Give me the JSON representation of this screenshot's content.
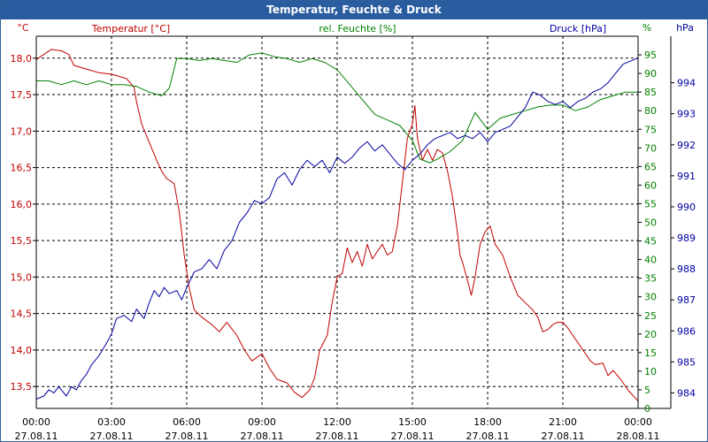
{
  "window": {
    "title": "Temperatur, Feuchte & Druck"
  },
  "chart_data": {
    "type": "line",
    "title": "Temperatur, Feuchte & Druck",
    "grid": true,
    "xlim_hours": [
      0,
      24
    ],
    "x_ticks": [
      {
        "hour": 0,
        "time": "00:00",
        "date": "27.08.11"
      },
      {
        "hour": 3,
        "time": "03:00",
        "date": "27.08.11"
      },
      {
        "hour": 6,
        "time": "06:00",
        "date": "27.08.11"
      },
      {
        "hour": 9,
        "time": "09:00",
        "date": "27.08.11"
      },
      {
        "hour": 12,
        "time": "12:00",
        "date": "27.08.11"
      },
      {
        "hour": 15,
        "time": "15:00",
        "date": "27.08.11"
      },
      {
        "hour": 18,
        "time": "18:00",
        "date": "27.08.11"
      },
      {
        "hour": 21,
        "time": "21:00",
        "date": "27.08.11"
      },
      {
        "hour": 24,
        "time": "00:00",
        "date": "28.08.11"
      }
    ],
    "axes": {
      "temperature": {
        "label": "Temperatur [°C]",
        "unit": "°C",
        "color": "#c00000",
        "ylim": [
          13.2,
          18.3
        ],
        "ticks": [
          "13,5",
          "14,0",
          "14,5",
          "15,0",
          "15,5",
          "16,0",
          "16,5",
          "17,0",
          "17,5",
          "18,0"
        ],
        "tick_values": [
          13.5,
          14.0,
          14.5,
          15.0,
          15.5,
          16.0,
          16.5,
          17.0,
          17.5,
          18.0
        ]
      },
      "humidity": {
        "label": "rel. Feuchte [%]",
        "unit": "%",
        "color": "#008000",
        "ylim": [
          0,
          100
        ],
        "ticks": [
          "0",
          "5",
          "10",
          "15",
          "20",
          "25",
          "30",
          "35",
          "40",
          "45",
          "50",
          "55",
          "60",
          "65",
          "70",
          "75",
          "80",
          "85",
          "90",
          "95"
        ],
        "tick_values": [
          0,
          5,
          10,
          15,
          20,
          25,
          30,
          35,
          40,
          45,
          50,
          55,
          60,
          65,
          70,
          75,
          80,
          85,
          90,
          95
        ]
      },
      "pressure": {
        "label": "Druck [hPa]",
        "unit": "hPa",
        "color": "#0000a0",
        "ylim": [
          983.5,
          995.5
        ],
        "ticks": [
          "984",
          "985",
          "986",
          "987",
          "988",
          "989",
          "990",
          "991",
          "992",
          "993",
          "994"
        ],
        "tick_values": [
          984,
          985,
          986,
          987,
          988,
          989,
          990,
          991,
          992,
          993,
          994
        ]
      }
    },
    "series": [
      {
        "name": "Temperatur [°C]",
        "axis": "temperature",
        "color": "#c00000",
        "points": [
          [
            0,
            17.98
          ],
          [
            0.3,
            18.05
          ],
          [
            0.6,
            18.12
          ],
          [
            1,
            18.1
          ],
          [
            1.3,
            18.05
          ],
          [
            1.5,
            17.9
          ],
          [
            2,
            17.85
          ],
          [
            2.5,
            17.8
          ],
          [
            3,
            17.78
          ],
          [
            3.3,
            17.75
          ],
          [
            3.6,
            17.72
          ],
          [
            3.9,
            17.6
          ],
          [
            4,
            17.4
          ],
          [
            4.2,
            17.1
          ],
          [
            4.5,
            16.85
          ],
          [
            4.8,
            16.6
          ],
          [
            5,
            16.45
          ],
          [
            5.2,
            16.35
          ],
          [
            5.5,
            16.28
          ],
          [
            5.7,
            15.9
          ],
          [
            5.9,
            15.3
          ],
          [
            6.1,
            14.85
          ],
          [
            6.3,
            14.55
          ],
          [
            6.6,
            14.45
          ],
          [
            7,
            14.35
          ],
          [
            7.3,
            14.25
          ],
          [
            7.6,
            14.38
          ],
          [
            8,
            14.2
          ],
          [
            8.3,
            14.0
          ],
          [
            8.6,
            13.85
          ],
          [
            9,
            13.95
          ],
          [
            9.3,
            13.75
          ],
          [
            9.6,
            13.6
          ],
          [
            10,
            13.55
          ],
          [
            10.3,
            13.42
          ],
          [
            10.6,
            13.35
          ],
          [
            10.9,
            13.45
          ],
          [
            11.1,
            13.62
          ],
          [
            11.3,
            14.0
          ],
          [
            11.6,
            14.2
          ],
          [
            11.8,
            14.65
          ],
          [
            12,
            15.0
          ],
          [
            12.2,
            15.05
          ],
          [
            12.4,
            15.4
          ],
          [
            12.6,
            15.2
          ],
          [
            12.8,
            15.35
          ],
          [
            13,
            15.15
          ],
          [
            13.2,
            15.45
          ],
          [
            13.4,
            15.25
          ],
          [
            13.6,
            15.35
          ],
          [
            13.8,
            15.45
          ],
          [
            14,
            15.3
          ],
          [
            14.2,
            15.35
          ],
          [
            14.4,
            15.7
          ],
          [
            14.6,
            16.3
          ],
          [
            14.8,
            16.9
          ],
          [
            15,
            17.1
          ],
          [
            15.1,
            17.35
          ],
          [
            15.2,
            16.9
          ],
          [
            15.4,
            16.6
          ],
          [
            15.6,
            16.75
          ],
          [
            15.8,
            16.6
          ],
          [
            16,
            16.75
          ],
          [
            16.2,
            16.7
          ],
          [
            16.4,
            16.45
          ],
          [
            16.6,
            16.1
          ],
          [
            16.8,
            15.6
          ],
          [
            16.9,
            15.3
          ],
          [
            17,
            15.2
          ],
          [
            17.2,
            14.95
          ],
          [
            17.35,
            14.75
          ],
          [
            17.5,
            15.0
          ],
          [
            17.7,
            15.45
          ],
          [
            17.9,
            15.62
          ],
          [
            18.1,
            15.7
          ],
          [
            18.3,
            15.45
          ],
          [
            18.6,
            15.3
          ],
          [
            18.9,
            15.0
          ],
          [
            19.2,
            14.75
          ],
          [
            19.5,
            14.65
          ],
          [
            19.8,
            14.55
          ],
          [
            20,
            14.45
          ],
          [
            20.2,
            14.25
          ],
          [
            20.4,
            14.28
          ],
          [
            20.6,
            14.35
          ],
          [
            20.8,
            14.38
          ],
          [
            21,
            14.38
          ],
          [
            21.2,
            14.3
          ],
          [
            21.5,
            14.15
          ],
          [
            21.8,
            14.0
          ],
          [
            22.1,
            13.85
          ],
          [
            22.3,
            13.8
          ],
          [
            22.6,
            13.82
          ],
          [
            22.8,
            13.65
          ],
          [
            23,
            13.72
          ],
          [
            23.3,
            13.6
          ],
          [
            23.6,
            13.45
          ],
          [
            24,
            13.3
          ]
        ]
      },
      {
        "name": "rel. Feuchte [%]",
        "axis": "humidity",
        "color": "#008000",
        "points": [
          [
            0,
            88
          ],
          [
            0.5,
            88
          ],
          [
            1,
            87
          ],
          [
            1.5,
            88
          ],
          [
            2,
            87
          ],
          [
            2.5,
            88
          ],
          [
            3,
            87
          ],
          [
            3.5,
            87
          ],
          [
            4,
            86.5
          ],
          [
            4.5,
            85
          ],
          [
            5,
            84
          ],
          [
            5.3,
            86
          ],
          [
            5.6,
            94
          ],
          [
            6,
            94
          ],
          [
            6.5,
            93.5
          ],
          [
            7,
            94
          ],
          [
            7.5,
            93.5
          ],
          [
            8,
            93
          ],
          [
            8.5,
            95
          ],
          [
            9,
            95.5
          ],
          [
            9.5,
            94.5
          ],
          [
            10,
            94
          ],
          [
            10.5,
            93
          ],
          [
            11,
            94
          ],
          [
            11.5,
            93
          ],
          [
            12,
            91
          ],
          [
            12.5,
            87
          ],
          [
            13,
            83
          ],
          [
            13.5,
            79
          ],
          [
            14,
            77.5
          ],
          [
            14.5,
            76
          ],
          [
            15,
            72
          ],
          [
            15.3,
            67
          ],
          [
            15.7,
            66
          ],
          [
            16,
            67
          ],
          [
            16.5,
            69
          ],
          [
            17,
            72
          ],
          [
            17.5,
            79.5
          ],
          [
            18,
            75
          ],
          [
            18.5,
            78
          ],
          [
            19,
            79
          ],
          [
            19.5,
            80
          ],
          [
            20,
            81
          ],
          [
            20.5,
            81.5
          ],
          [
            21,
            81.5
          ],
          [
            21.5,
            80
          ],
          [
            22,
            81
          ],
          [
            22.5,
            83
          ],
          [
            23,
            84
          ],
          [
            23.5,
            85
          ],
          [
            24,
            85
          ]
        ]
      },
      {
        "name": "Druck [hPa]",
        "axis": "pressure",
        "color": "#0000a0",
        "points": [
          [
            0,
            983.8
          ],
          [
            0.3,
            983.9
          ],
          [
            0.5,
            984.1
          ],
          [
            0.7,
            984.0
          ],
          [
            0.9,
            984.2
          ],
          [
            1,
            984.1
          ],
          [
            1.2,
            983.9
          ],
          [
            1.4,
            984.2
          ],
          [
            1.6,
            984.1
          ],
          [
            1.8,
            984.4
          ],
          [
            2,
            984.6
          ],
          [
            2.2,
            984.9
          ],
          [
            2.5,
            985.2
          ],
          [
            2.8,
            985.6
          ],
          [
            3,
            985.9
          ],
          [
            3.2,
            986.4
          ],
          [
            3.5,
            986.5
          ],
          [
            3.8,
            986.3
          ],
          [
            4,
            986.7
          ],
          [
            4.3,
            986.4
          ],
          [
            4.5,
            986.9
          ],
          [
            4.7,
            987.3
          ],
          [
            4.9,
            987.1
          ],
          [
            5.1,
            987.4
          ],
          [
            5.3,
            987.2
          ],
          [
            5.6,
            987.3
          ],
          [
            5.8,
            987.0
          ],
          [
            6,
            987.4
          ],
          [
            6.3,
            987.9
          ],
          [
            6.6,
            988.0
          ],
          [
            6.9,
            988.3
          ],
          [
            7.2,
            988.0
          ],
          [
            7.5,
            988.6
          ],
          [
            7.8,
            988.9
          ],
          [
            8.1,
            989.5
          ],
          [
            8.4,
            989.8
          ],
          [
            8.7,
            990.2
          ],
          [
            9,
            990.1
          ],
          [
            9.3,
            990.3
          ],
          [
            9.6,
            990.9
          ],
          [
            9.9,
            991.1
          ],
          [
            10.2,
            990.7
          ],
          [
            10.5,
            991.2
          ],
          [
            10.8,
            991.5
          ],
          [
            11.1,
            991.3
          ],
          [
            11.4,
            991.5
          ],
          [
            11.7,
            991.1
          ],
          [
            12,
            991.6
          ],
          [
            12.3,
            991.4
          ],
          [
            12.6,
            991.6
          ],
          [
            12.9,
            991.9
          ],
          [
            13.2,
            992.1
          ],
          [
            13.5,
            991.8
          ],
          [
            13.8,
            992.0
          ],
          [
            14.1,
            991.7
          ],
          [
            14.4,
            991.4
          ],
          [
            14.7,
            991.2
          ],
          [
            15,
            991.5
          ],
          [
            15.3,
            991.7
          ],
          [
            15.6,
            992.0
          ],
          [
            15.9,
            992.2
          ],
          [
            16.2,
            992.3
          ],
          [
            16.5,
            992.4
          ],
          [
            16.8,
            992.2
          ],
          [
            17.1,
            992.3
          ],
          [
            17.4,
            992.2
          ],
          [
            17.7,
            992.4
          ],
          [
            18,
            992.1
          ],
          [
            18.3,
            992.4
          ],
          [
            18.6,
            992.5
          ],
          [
            18.9,
            992.6
          ],
          [
            19.2,
            992.9
          ],
          [
            19.5,
            993.2
          ],
          [
            19.8,
            993.7
          ],
          [
            20.1,
            993.6
          ],
          [
            20.4,
            993.4
          ],
          [
            20.7,
            993.3
          ],
          [
            21,
            993.4
          ],
          [
            21.3,
            993.2
          ],
          [
            21.6,
            993.4
          ],
          [
            21.9,
            993.5
          ],
          [
            22.2,
            993.7
          ],
          [
            22.5,
            993.8
          ],
          [
            22.8,
            994.0
          ],
          [
            23.1,
            994.3
          ],
          [
            23.4,
            994.6
          ],
          [
            23.7,
            994.7
          ],
          [
            24,
            994.8
          ]
        ]
      }
    ]
  }
}
